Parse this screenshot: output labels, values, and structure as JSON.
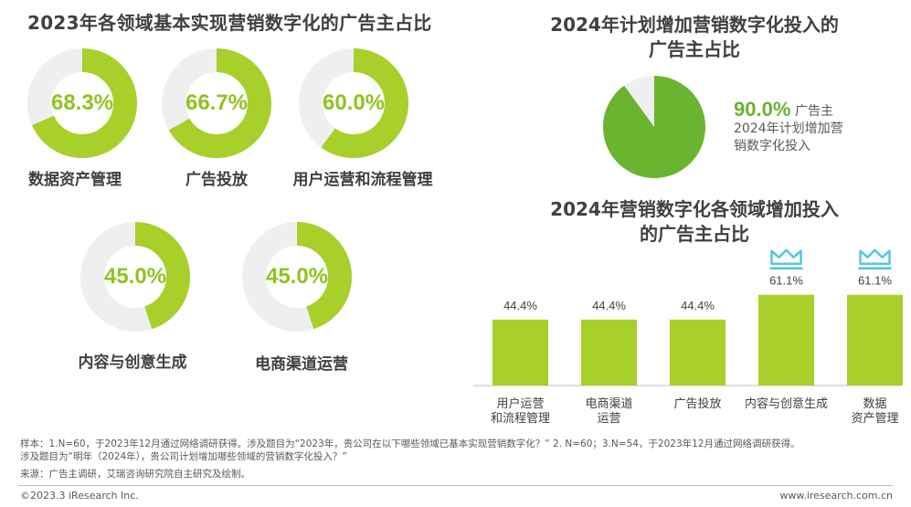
{
  "titles": {
    "left": "2023年各领域基本实现营销数字化的广告主占比",
    "pie_line1": "2024年计划增加营销数字化投入的",
    "pie_line2": "广告主占比",
    "bar_line1": "2024年营销数字化各领域增加投入",
    "bar_line2": "的广告主占比"
  },
  "colors": {
    "accent": "#a8cf2a",
    "track": "#efefef",
    "pie_green": "#6ab42f",
    "crown": "#56c5e0"
  },
  "chart_data": [
    {
      "type": "pie",
      "title": "2023年各领域基本实现营销数字化的广告主占比",
      "style": "donut",
      "slices": [
        {
          "label": "数据资产管理",
          "value": 68.3,
          "display": "68.3%"
        },
        {
          "label": "广告投放",
          "value": 66.7,
          "display": "66.7%"
        },
        {
          "label": "用户运营和流程管理",
          "value": 60.0,
          "display": "60.0%"
        },
        {
          "label": "内容与创意生成",
          "value": 45.0,
          "display": "45.0%"
        },
        {
          "label": "电商渠道运营",
          "value": 45.0,
          "display": "45.0%"
        }
      ]
    },
    {
      "type": "pie",
      "title": "2024年计划增加营销数字化投入的广告主占比",
      "value": 90.0,
      "display": "90.0%",
      "description_line1": "广告主",
      "description_line2": "2024年计划增加营",
      "description_line3": "销数字化投入"
    },
    {
      "type": "bar",
      "title": "2024年营销数字化各领域增加投入的广告主占比",
      "categories": [
        "用户运营\n和流程管理",
        "电商渠道\n运营",
        "广告投放",
        "内容与创意生成",
        "数据\n资产管理"
      ],
      "values": [
        44.4,
        44.4,
        44.4,
        61.1,
        61.1
      ],
      "labels": [
        "44.4%",
        "44.4%",
        "44.4%",
        "61.1%",
        "61.1%"
      ],
      "highlighted": [
        false,
        false,
        false,
        true,
        true
      ],
      "ylim": [
        0,
        80
      ]
    }
  ],
  "footnotes": {
    "note_line1": "样本：1.N=60，于2023年12月通过网络调研获得。涉及题目为“2023年，贵公司在以下哪些领域已基本实现营销数字化？” 2. N=60；3.N=54，于2023年12月通过网络调研获得。",
    "note_line2": "涉及题目为“明年（2024年），贵公司计划增加哪些领域的营销数字化投入？”",
    "source": "来源：广告主调研，艾瑞咨询研究院自主研究及绘制。",
    "copyright": "©2023.3 iResearch Inc.",
    "website": "www.iresearch.com.cn"
  }
}
